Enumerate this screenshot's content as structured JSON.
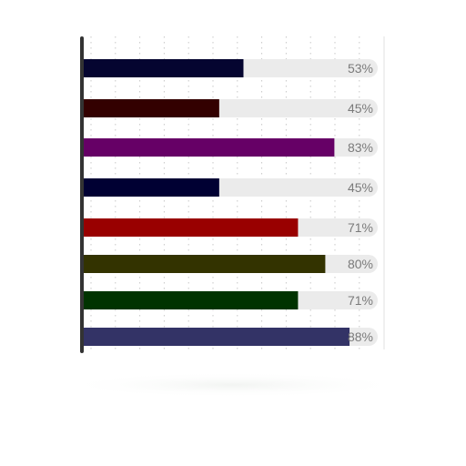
{
  "chart_data": {
    "type": "bar",
    "orientation": "horizontal",
    "title": "",
    "xlabel": "",
    "ylabel": "",
    "xlim": [
      0,
      100
    ],
    "grid": true,
    "legend": "none",
    "bars": [
      {
        "value": 53,
        "label": "53%",
        "color": "#050530"
      },
      {
        "value": 45,
        "label": "45%",
        "color": "#330000"
      },
      {
        "value": 83,
        "label": "83%",
        "color": "#660066"
      },
      {
        "value": 45,
        "label": "45%",
        "color": "#000033"
      },
      {
        "value": 71,
        "label": "71%",
        "color": "#990000"
      },
      {
        "value": 80,
        "label": "80%",
        "color": "#333300"
      },
      {
        "value": 71,
        "label": "71%",
        "color": "#003300"
      },
      {
        "value": 88,
        "label": "88%",
        "color": "#333366"
      }
    ],
    "track_color": "#ebebeb",
    "axis_color": "#333333",
    "grid_color": "#c8c8c8",
    "label_color": "#7a7a7a"
  }
}
